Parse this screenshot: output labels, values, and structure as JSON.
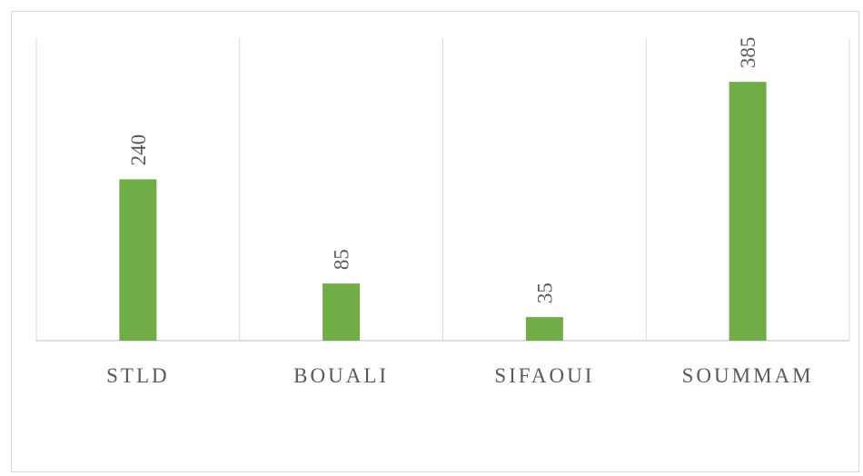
{
  "chart_data": {
    "type": "bar",
    "categories": [
      "STLD",
      "BOUALI",
      "SIFAOUI",
      "SOUMMAM"
    ],
    "values": [
      240,
      85,
      35,
      385
    ],
    "color": "#70ad47",
    "ylim": [
      0,
      450
    ],
    "data_labels": true
  }
}
